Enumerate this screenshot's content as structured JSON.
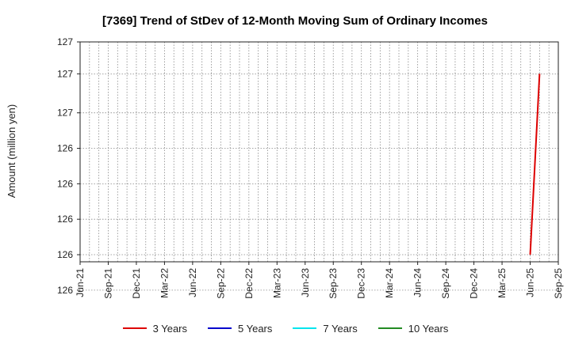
{
  "chart_data": {
    "type": "line",
    "title": "[7369]  Trend of StDev of 12-Month Moving Sum of Ordinary Incomes",
    "ylabel": "Amount (million yen)",
    "xlabel": "",
    "x_ticks": [
      "Jun-21",
      "Sep-21",
      "Dec-21",
      "Mar-22",
      "Jun-22",
      "Sep-22",
      "Dec-22",
      "Mar-23",
      "Jun-23",
      "Sep-23",
      "Dec-23",
      "Mar-24",
      "Jun-24",
      "Sep-24",
      "Dec-24",
      "Mar-25",
      "Jun-25",
      "Sep-25"
    ],
    "y_tick_labels": [
      "127",
      "127",
      "127",
      "126",
      "126",
      "126",
      "126",
      "126"
    ],
    "ylim": [
      125.82,
      127.06
    ],
    "y_tick_values": [
      127.06,
      126.88,
      126.66,
      126.46,
      126.26,
      126.06,
      125.86,
      125.66
    ],
    "grid": true,
    "legend_position": "bottom",
    "series": [
      {
        "name": "3 Years",
        "color": "#dd0000",
        "points": [
          {
            "month_index": 48,
            "value": 125.86
          },
          {
            "month_index": 49,
            "value": 126.88
          }
        ]
      },
      {
        "name": "5 Years",
        "color": "#0000cc",
        "points": []
      },
      {
        "name": "7 Years",
        "color": "#00e5ee",
        "points": []
      },
      {
        "name": "10 Years",
        "color": "#228b22",
        "points": []
      }
    ]
  }
}
